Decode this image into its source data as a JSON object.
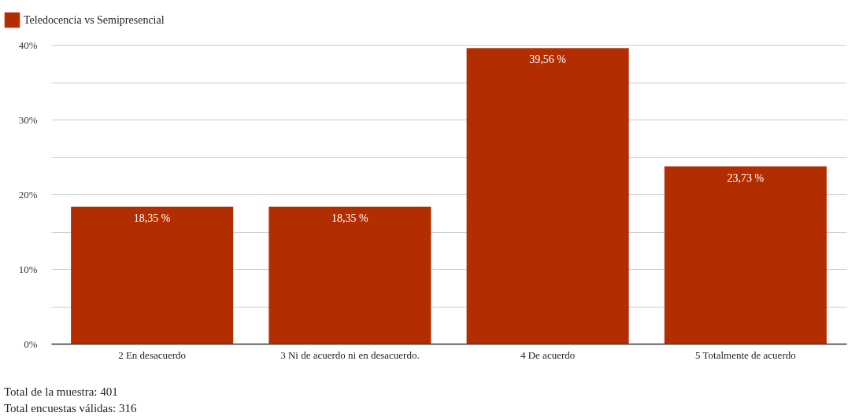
{
  "chart_data": {
    "type": "bar",
    "categories": [
      "2 En desacuerdo",
      "3 Ni de acuerdo ni en desacuerdo.",
      "4 De acuerdo",
      "5 Totalmente de acuerdo"
    ],
    "series": [
      {
        "name": "Teledocencia vs Semipresencial",
        "color": "#b22e00",
        "values": [
          18.35,
          18.35,
          39.56,
          23.73
        ]
      }
    ],
    "value_labels": [
      "18,35 %",
      "18,35 %",
      "39,56 %",
      "23,73 %"
    ],
    "ylim": [
      0,
      40
    ],
    "yticks": [
      {
        "value": 0,
        "label": "0%"
      },
      {
        "value": 5,
        "label": null
      },
      {
        "value": 10,
        "label": "10%"
      },
      {
        "value": 15,
        "label": null
      },
      {
        "value": 20,
        "label": "20%"
      },
      {
        "value": 25,
        "label": null
      },
      {
        "value": 30,
        "label": "30%"
      },
      {
        "value": 35,
        "label": null
      },
      {
        "value": 40,
        "label": "40%"
      }
    ],
    "grid": "y",
    "legend": "top left",
    "annotations": [
      "Total de la muestra: 401",
      "Total encuestas válidas: 316"
    ]
  }
}
